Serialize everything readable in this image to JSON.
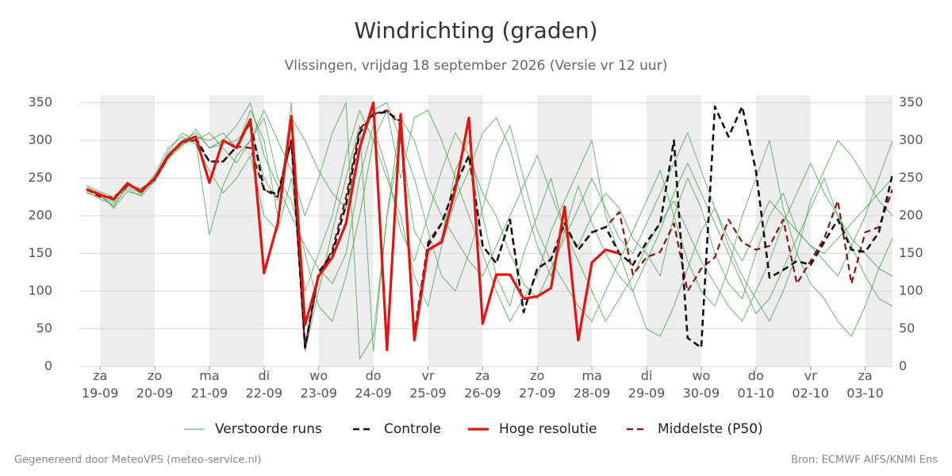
{
  "chart_data": {
    "type": "line",
    "title": "Windrichting (graden)",
    "subtitle": "Vlissingen, vrijdag 18 september 2026 (Versie vr 12 uur)",
    "footer_left": "Gegenereerd door MeteoVPS (meteo-service.nl)",
    "footer_right": "Bron: ECMWF AIFS/KNMI Ens",
    "x": [
      -0.25,
      0,
      0.25,
      0.5,
      0.75,
      1,
      1.25,
      1.5,
      1.75,
      2,
      2.25,
      2.5,
      2.75,
      3,
      3.25,
      3.5,
      3.75,
      4,
      4.25,
      4.5,
      4.75,
      5,
      5.25,
      5.5,
      5.75,
      6,
      6.25,
      6.5,
      6.75,
      7,
      7.25,
      7.5,
      7.75,
      8,
      8.25,
      8.5,
      8.75,
      9,
      9.25,
      9.5,
      9.75,
      10,
      10.25,
      10.5,
      10.75,
      11,
      11.25,
      11.5,
      11.75,
      12,
      12.25,
      12.5,
      12.75,
      13,
      13.25,
      13.5,
      13.75,
      14,
      14.25,
      14.5
    ],
    "xlim": [
      -0.38,
      14.5
    ],
    "xticks": [
      {
        "value": 0,
        "label": "za 19-09"
      },
      {
        "value": 1,
        "label": "zo 20-09"
      },
      {
        "value": 2,
        "label": "ma 21-09"
      },
      {
        "value": 3,
        "label": "di 22-09"
      },
      {
        "value": 4,
        "label": "wo 23-09"
      },
      {
        "value": 5,
        "label": "do 24-09"
      },
      {
        "value": 6,
        "label": "vr 25-09"
      },
      {
        "value": 7,
        "label": "za 26-09"
      },
      {
        "value": 8,
        "label": "zo 27-09"
      },
      {
        "value": 9,
        "label": "ma 28-09"
      },
      {
        "value": 10,
        "label": "di 29-09"
      },
      {
        "value": 11,
        "label": "wo 30-09"
      },
      {
        "value": 12,
        "label": "do 01-10"
      },
      {
        "value": 13,
        "label": "vr 02-10"
      },
      {
        "value": 14,
        "label": "za 03-10"
      }
    ],
    "ylim": [
      0,
      360
    ],
    "yticks": [
      0,
      50,
      100,
      150,
      200,
      250,
      300,
      350
    ],
    "y2lim": [
      0,
      360
    ],
    "y2ticks": [
      0,
      50,
      100,
      150,
      200,
      250,
      300,
      350
    ],
    "grid": true,
    "shade_alternate_days": true,
    "legend": "bottom",
    "series": [
      {
        "name": "Verstoorde runs",
        "color": "#3f9f46",
        "dashed": false,
        "runs": [
          [
            232,
            222,
            215,
            238,
            230,
            248,
            282,
            300,
            310,
            290,
            295,
            300,
            320,
            250,
            220,
            330,
            300,
            260,
            230,
            210,
            290,
            340,
            350,
            300,
            180,
            150,
            170,
            260,
            300,
            200,
            120,
            80,
            150,
            200,
            250,
            180,
            160,
            200,
            230,
            210,
            170,
            150,
            120,
            200,
            250,
            210,
            150,
            110,
            90,
            150,
            200,
            230,
            180,
            160,
            140,
            120,
            160,
            200,
            250,
            300
          ],
          [
            238,
            230,
            210,
            232,
            228,
            252,
            285,
            310,
            300,
            175,
            240,
            280,
            300,
            330,
            250,
            220,
            150,
            80,
            60,
            120,
            200,
            300,
            340,
            250,
            330,
            340,
            300,
            250,
            200,
            150,
            100,
            60,
            90,
            120,
            180,
            220,
            260,
            300,
            200,
            150,
            100,
            50,
            40,
            80,
            130,
            180,
            210,
            160,
            120,
            90,
            60,
            100,
            150,
            220,
            260,
            300,
            280,
            250,
            220,
            200
          ],
          [
            235,
            228,
            220,
            240,
            235,
            245,
            275,
            295,
            305,
            300,
            310,
            290,
            340,
            300,
            200,
            350,
            20,
            100,
            180,
            250,
            320,
            20,
            200,
            300,
            250,
            180,
            120,
            100,
            150,
            210,
            280,
            320,
            250,
            180,
            140,
            110,
            80,
            60,
            100,
            140,
            180,
            220,
            260,
            200,
            140,
            100,
            80,
            130,
            200,
            250,
            300,
            210,
            150,
            110,
            90,
            60,
            40,
            80,
            130,
            170
          ],
          [
            230,
            225,
            218,
            245,
            232,
            255,
            290,
            305,
            295,
            260,
            230,
            250,
            280,
            200,
            180,
            250,
            100,
            150,
            200,
            280,
            340,
            300,
            250,
            200,
            120,
            80,
            160,
            220,
            260,
            310,
            330,
            290,
            220,
            160,
            120,
            180,
            240,
            190,
            150,
            120,
            100,
            140,
            180,
            230,
            270,
            230,
            190,
            150,
            110,
            70,
            90,
            130,
            170,
            210,
            250,
            200,
            160,
            120,
            90,
            80
          ],
          [
            240,
            232,
            225,
            235,
            226,
            246,
            278,
            292,
            315,
            290,
            300,
            320,
            350,
            280,
            240,
            200,
            160,
            130,
            110,
            150,
            250,
            320,
            260,
            180,
            140,
            200,
            260,
            310,
            280,
            230,
            200,
            150,
            110,
            90,
            130,
            170,
            210,
            250,
            210,
            170,
            150,
            190,
            230,
            270,
            310,
            260,
            210,
            170,
            140,
            180,
            220,
            200,
            180,
            160,
            150,
            170,
            190,
            210,
            230,
            250
          ],
          [
            236,
            226,
            212,
            240,
            236,
            250,
            280,
            295,
            300,
            310,
            290,
            270,
            300,
            340,
            300,
            260,
            200,
            250,
            310,
            350,
            10,
            40,
            200,
            330,
            300,
            240,
            200,
            170,
            140,
            120,
            160,
            200,
            240,
            280,
            230,
            180,
            140,
            100,
            60,
            90,
            120,
            160,
            190,
            220,
            180,
            140,
            110,
            80,
            60,
            100,
            140,
            190,
            230,
            270,
            230,
            200,
            170,
            150,
            130,
            120
          ]
        ]
      },
      {
        "name": "Controle",
        "color": "#111111",
        "dashed": true,
        "values": [
          235,
          228,
          222,
          243,
          232,
          250,
          280,
          298,
          303,
          272,
          272,
          292,
          325,
          235,
          228,
          300,
          25,
          125,
          150,
          215,
          310,
          335,
          338,
          325,
          40,
          160,
          190,
          240,
          280,
          160,
          137,
          195,
          72,
          130,
          142,
          190,
          155,
          178,
          185,
          150,
          135,
          165,
          190,
          300,
          38,
          25,
          345,
          305,
          345,
          260,
          118,
          128,
          140,
          135,
          165,
          195,
          155,
          152,
          178,
          255
        ]
      },
      {
        "name": "Hoge resolutie",
        "color": "#e3140f",
        "dashed": false,
        "values": [
          235,
          228,
          222,
          243,
          232,
          250,
          280,
          298,
          305,
          244,
          300,
          290,
          328,
          124,
          190,
          332,
          55,
          120,
          145,
          190,
          290,
          350,
          22,
          335,
          35,
          155,
          165,
          235,
          330,
          57,
          122,
          122,
          90,
          93,
          104,
          212,
          35,
          138,
          155,
          150,
          null,
          null,
          null,
          null,
          null,
          null,
          null,
          null,
          null,
          null,
          null,
          null,
          null,
          null,
          null,
          null,
          null,
          null,
          null,
          null
        ]
      },
      {
        "name": "Middelste (P50)",
        "color": "#8b1010",
        "dashed": true,
        "values": [
          235,
          225,
          225,
          240,
          235,
          248,
          278,
          298,
          300,
          272,
          272,
          292,
          290,
          235,
          225,
          300,
          25,
          120,
          155,
          225,
          315,
          335,
          340,
          320,
          45,
          165,
          190,
          240,
          280,
          160,
          137,
          195,
          72,
          130,
          142,
          190,
          155,
          178,
          185,
          205,
          122,
          145,
          152,
          190,
          100,
          130,
          145,
          195,
          165,
          155,
          160,
          195,
          110,
          140,
          170,
          220,
          110,
          178,
          185,
          235
        ]
      }
    ]
  }
}
